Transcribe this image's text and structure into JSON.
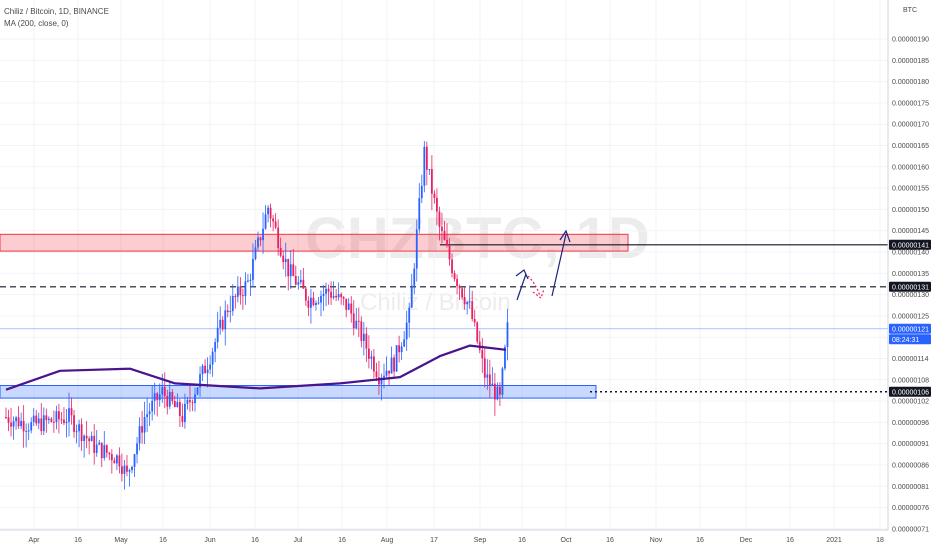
{
  "header": {
    "symbol_line": "Chiliz / Bitcoin, 1D, BINANCE",
    "indicator_line": "MA (200, close, 0)"
  },
  "watermark": {
    "ticker": "CHZBTC, 1D",
    "pair": "Chiliz / Bitcoin"
  },
  "chart_data": {
    "type": "candlestick",
    "currency_label": "BTC",
    "y_ticks": [
      "0.00000190",
      "0.00000185",
      "0.00000180",
      "0.00000175",
      "0.00000170",
      "0.00000165",
      "0.00000160",
      "0.00000155",
      "0.00000150",
      "0.00000145",
      "0.00000140",
      "0.00000135",
      "0.00000130",
      "0.00000125",
      "0.00000120",
      "0.00000114",
      "0.00000108",
      "0.00000102",
      "0.00000096",
      "0.00000091",
      "0.00000086",
      "0.00000081",
      "0.00000076",
      "0.00000071"
    ],
    "x_ticks": [
      "Apr",
      "16",
      "May",
      "16",
      "Jun",
      "16",
      "Jul",
      "16",
      "Aug",
      "17",
      "Sep",
      "16",
      "Oct",
      "16",
      "Nov",
      "16",
      "Dec",
      "16",
      "2021",
      "18"
    ],
    "price_tags": [
      {
        "label": "0.00000141",
        "value": 1.41e-06,
        "color": "#131722"
      },
      {
        "label": "0.00000131",
        "value": 1.31e-06,
        "color": "#131722"
      },
      {
        "label": "0.00000121",
        "value": 1.21e-06,
        "color": "#2962ff"
      },
      {
        "label": "08:24:31",
        "value": 1.185e-06,
        "color": "#2962ff"
      },
      {
        "label": "0.00000106",
        "value": 1.06e-06,
        "color": "#131722"
      }
    ],
    "levels": [
      {
        "value": 1.41e-06,
        "style": "solid"
      },
      {
        "value": 1.31e-06,
        "style": "dashed"
      },
      {
        "value": 1.06e-06,
        "style": "dotted"
      },
      {
        "value": 1.21e-06,
        "style": "thin-blue"
      }
    ],
    "zones": [
      {
        "from": 1.395e-06,
        "to": 1.435e-06,
        "color": "#f23645",
        "start": "Mar 20",
        "end": "Sep 27"
      },
      {
        "from": 1.045e-06,
        "to": 1.075e-06,
        "color": "#2962ff",
        "start": "Mar 20",
        "end": "Sep 17"
      }
    ],
    "colors": {
      "up": "#2962ff",
      "down": "#e91e63",
      "ma": "#4a148c"
    },
    "candle_count": 166
  }
}
